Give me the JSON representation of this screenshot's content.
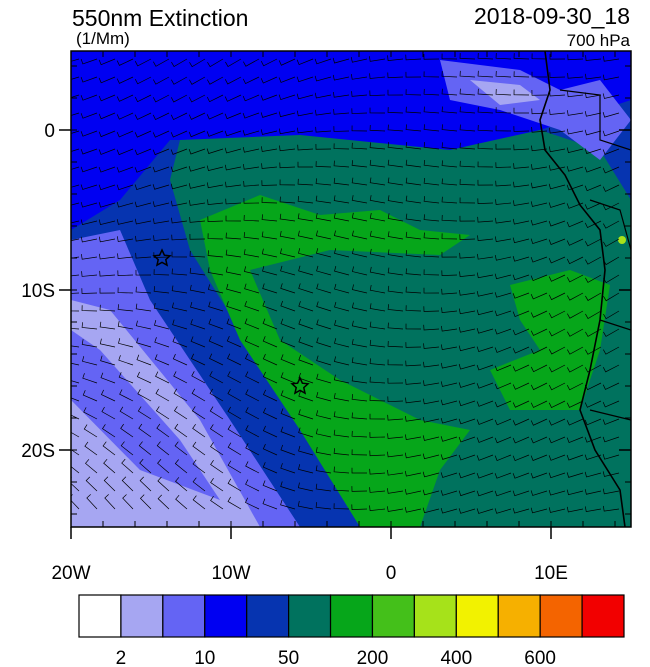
{
  "title": "550nm Extinction",
  "units": "(1/Mm)",
  "time": "2018-09-30_18",
  "level": "700 hPa",
  "lat_labels": [
    "0",
    "10S",
    "20S"
  ],
  "lon_labels": [
    "20W",
    "10W",
    "0",
    "10E"
  ],
  "colorbar": {
    "colors": [
      "#ffffff",
      "#a6a6f2",
      "#6464f4",
      "#0000f2",
      "#0634b0",
      "#00725e",
      "#06a61a",
      "#44c01a",
      "#a6e21a",
      "#f2f200",
      "#f6b000",
      "#f46400",
      "#f20000"
    ],
    "labels": [
      "2",
      "10",
      "50",
      "200",
      "400",
      "600"
    ]
  }
}
